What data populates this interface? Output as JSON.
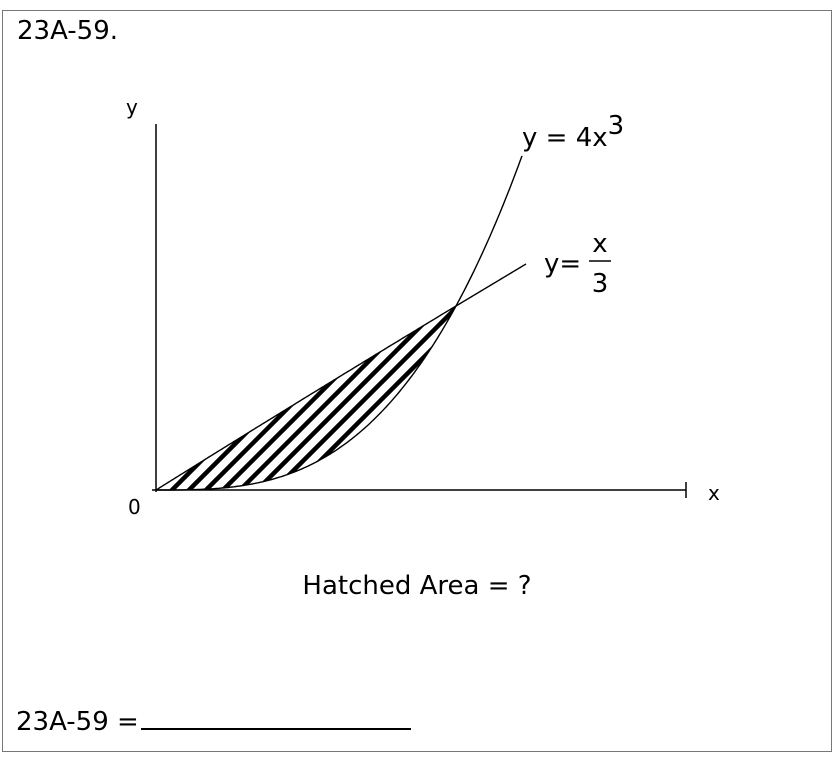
{
  "problem": {
    "id_label": "23A-59.",
    "caption": "Hatched Area = ?",
    "answer_prefix": "23A-59 ="
  },
  "figure": {
    "axis_x_label": "x",
    "axis_y_label": "y",
    "origin_label": "0",
    "curve_cubic": {
      "prefix": "y = 4x",
      "exponent": "3"
    },
    "curve_linear": {
      "prefix": "y=",
      "numerator": "x",
      "denominator": "3"
    },
    "colors": {
      "stroke": "#000000",
      "border": "#777777"
    }
  }
}
